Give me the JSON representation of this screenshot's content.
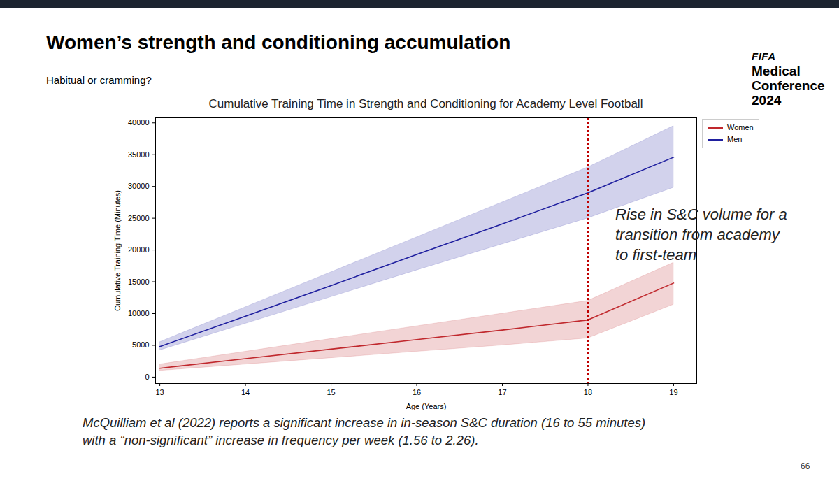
{
  "slide": {
    "title": "Women’s strength and conditioning accumulation",
    "subtitle": "Habitual or cramming?",
    "logo": [
      "FIFA",
      "Medical",
      "Conference",
      "2024"
    ],
    "caption": [
      "McQuilliam et al (2022) reports a significant increase in in-season S&C duration (16 to 55 minutes)",
      "with a “non-significant” increase in frequency per week (1.56 to 2.26)."
    ],
    "page_number": "66"
  },
  "chart_data": {
    "type": "line",
    "title": "Cumulative Training Time in Strength and Conditioning for Academy Level Football",
    "xlabel": "Age (Years)",
    "ylabel": "Cumulative Training Time (Minutes)",
    "x": [
      13,
      14,
      15,
      16,
      17,
      18,
      19
    ],
    "series": [
      {
        "name": "Women",
        "color": "#c0282d",
        "values": [
          1400,
          2900,
          4400,
          5900,
          7400,
          9000,
          14800
        ],
        "lower": [
          1000,
          2000,
          3000,
          4000,
          5000,
          6100,
          11400
        ],
        "upper": [
          2000,
          4000,
          6000,
          8000,
          10000,
          12000,
          18000
        ]
      },
      {
        "name": "Men",
        "color": "#1f1f9f",
        "values": [
          4800,
          9600,
          14400,
          19300,
          24100,
          29000,
          34600
        ],
        "lower": [
          4200,
          8400,
          12600,
          16800,
          20900,
          25000,
          29800
        ],
        "upper": [
          5500,
          11000,
          16500,
          22000,
          27500,
          33000,
          39500
        ]
      }
    ],
    "xlim": [
      12.95,
      19.27
    ],
    "ylim": [
      -1000,
      40800
    ],
    "xticks": [
      13,
      14,
      15,
      16,
      17,
      18,
      19
    ],
    "yticks": [
      0,
      5000,
      10000,
      15000,
      20000,
      25000,
      30000,
      35000,
      40000
    ],
    "grid": false,
    "legend": "upper right",
    "vline": {
      "x": 18,
      "color": "#c00000",
      "line_style": "dotted"
    },
    "annotation": [
      "Rise in S&C volume for a",
      "transition from academy",
      "to first-team"
    ]
  }
}
